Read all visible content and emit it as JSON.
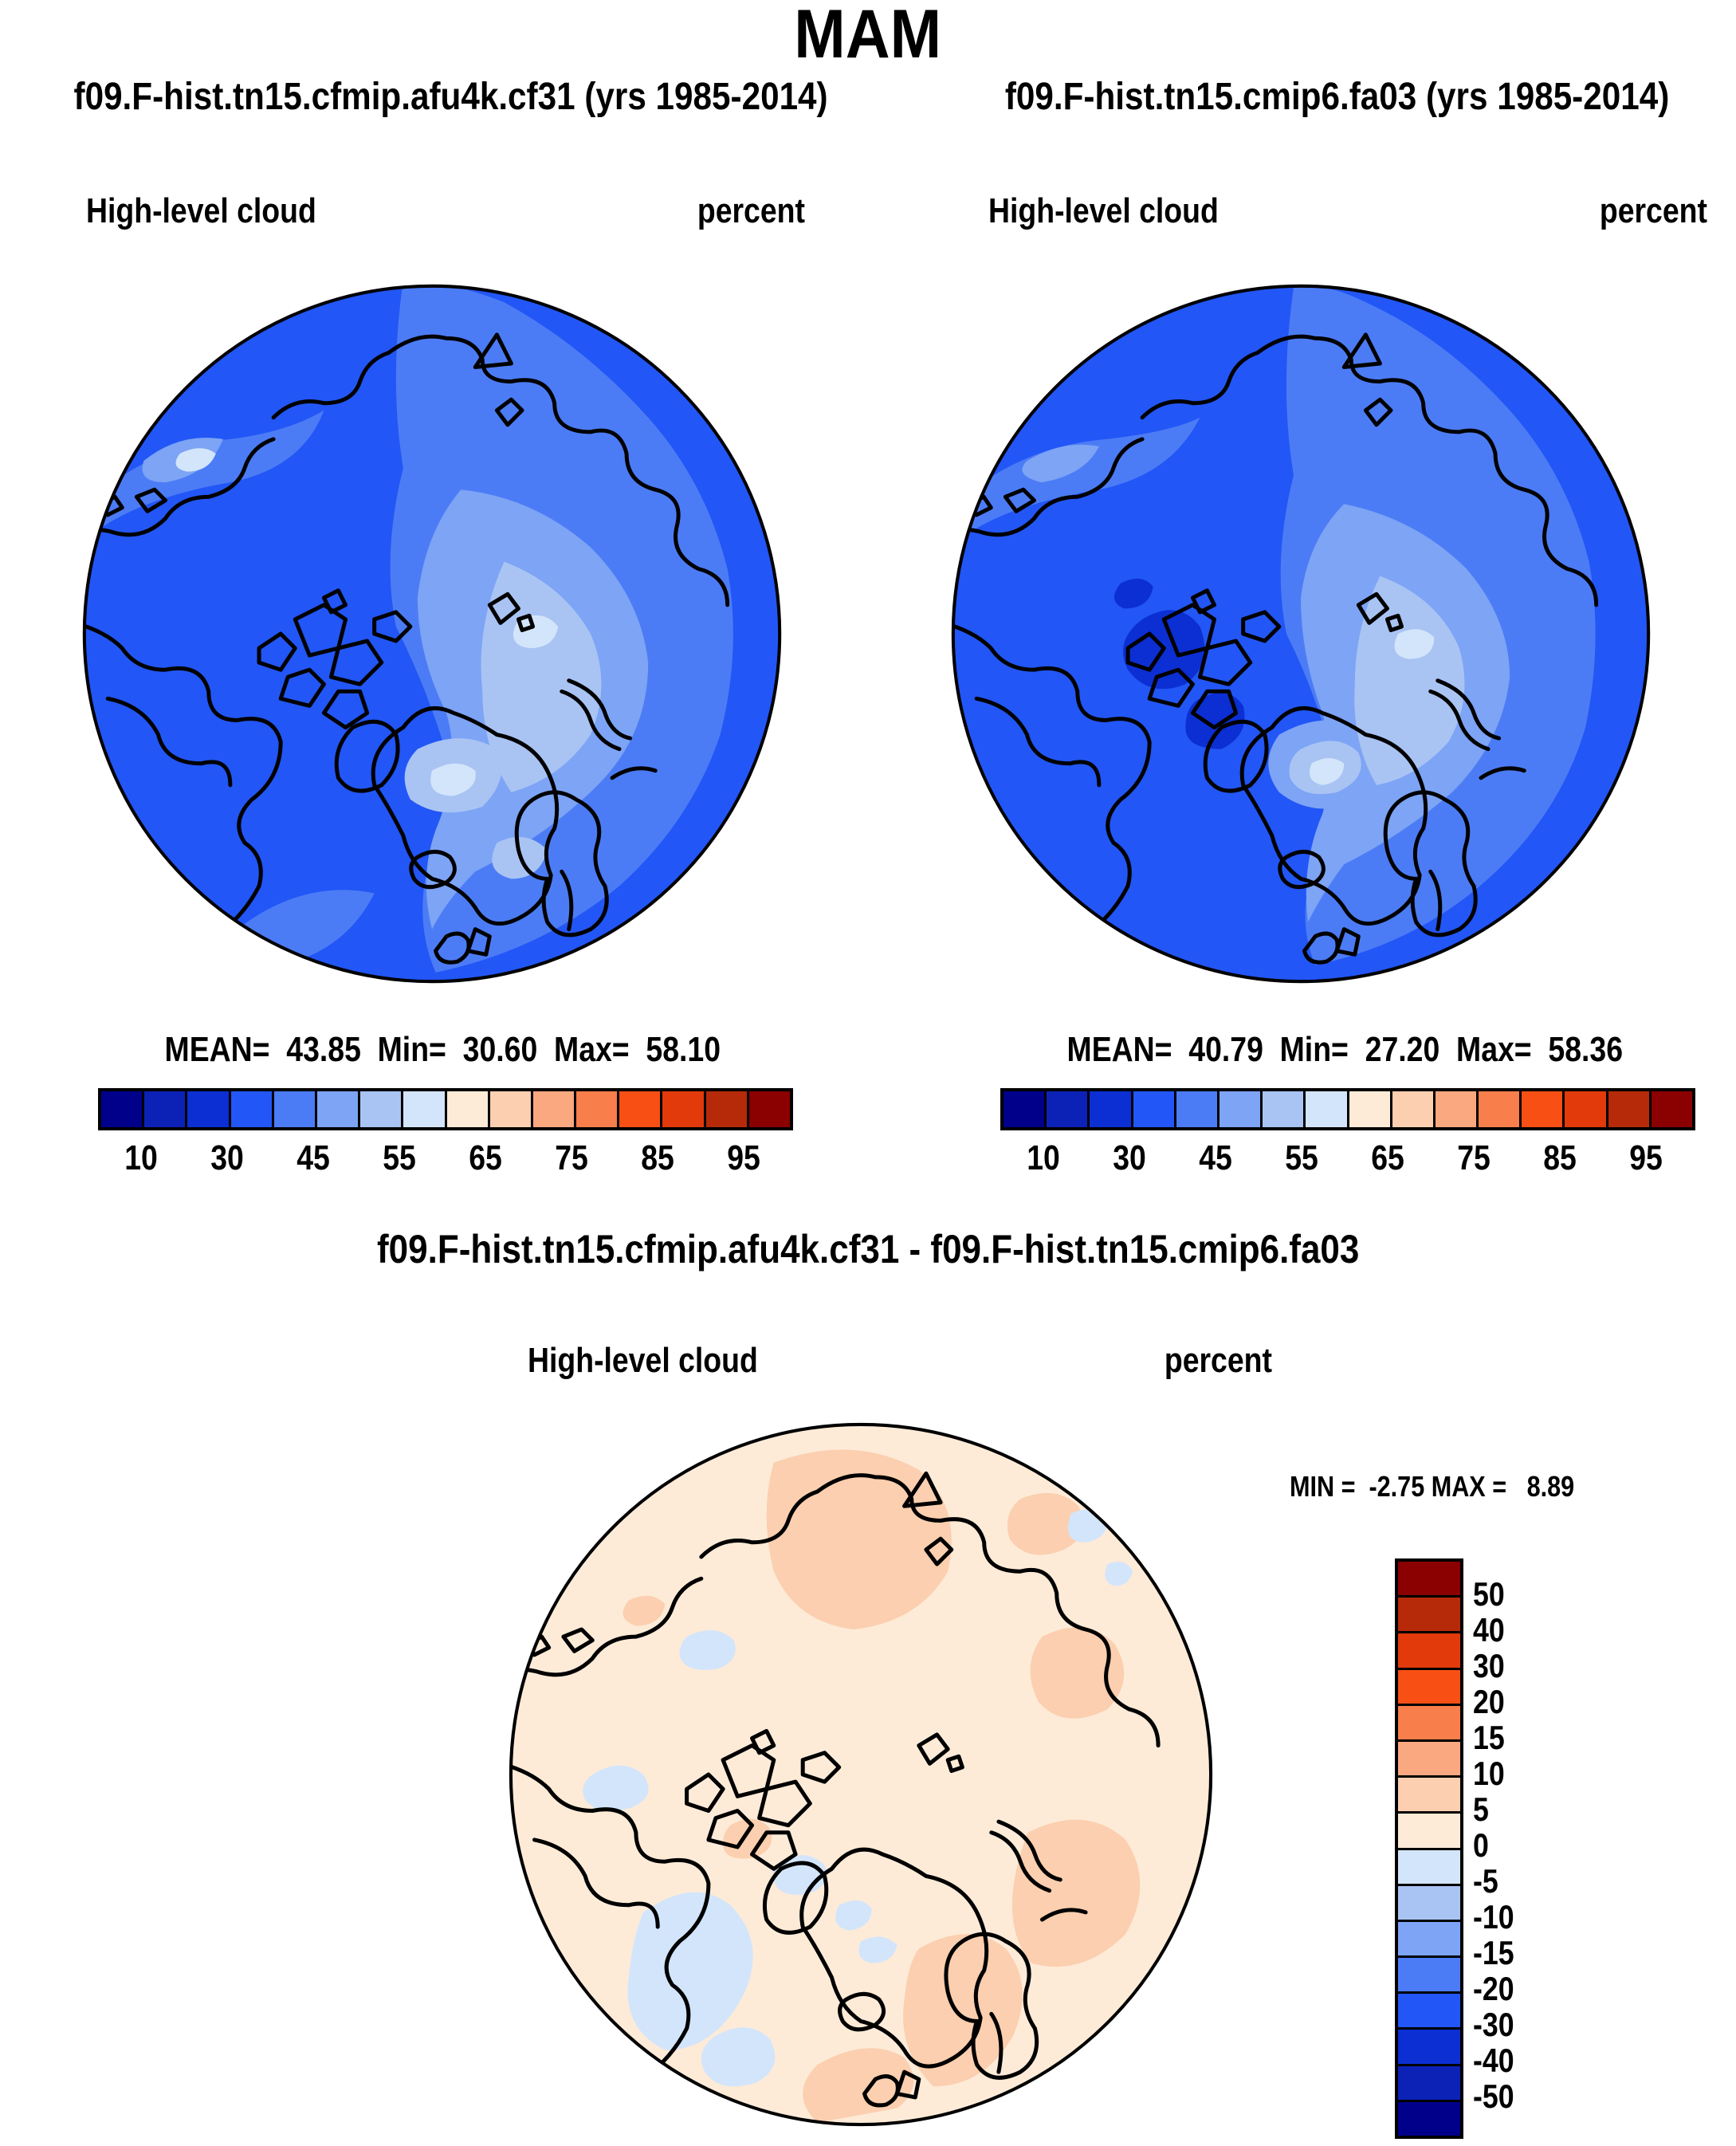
{
  "page_title": "MAM",
  "panels": [
    {
      "title": "f09.F-hist.tn15.cfmip.afu4k.cf31 (yrs 1985-2014)",
      "var_label": "High-level cloud",
      "units": "percent",
      "stats": "MEAN=  43.85  Min=  30.60  Max=  58.10"
    },
    {
      "title": "f09.F-hist.tn15.cmip6.fa03 (yrs 1985-2014)",
      "var_label": "High-level cloud",
      "units": "percent",
      "stats": "MEAN=  40.79  Min=  27.20  Max=  58.36"
    }
  ],
  "diff": {
    "title": "f09.F-hist.tn15.cfmip.afu4k.cf31 - f09.F-hist.tn15.cmip6.fa03",
    "var_label": "High-level cloud",
    "units": "percent",
    "minmax": "MIN =  -2.75 MAX =   8.89"
  },
  "chart_data": {
    "type": "heatmap",
    "subtype": "north-polar-stereographic contour maps",
    "season": "MAM",
    "variable": "High-level cloud",
    "units": "percent",
    "maps": [
      {
        "name": "f09.F-hist.tn15.cfmip.afu4k.cf31",
        "years": "1985-2014",
        "mean": 43.85,
        "min": 30.6,
        "max": 58.1
      },
      {
        "name": "f09.F-hist.tn15.cmip6.fa03",
        "years": "1985-2014",
        "mean": 40.79,
        "min": 27.2,
        "max": 58.36
      },
      {
        "name": "difference (cfmip.afu4k.cf31 - cmip6.fa03)",
        "min": -2.75,
        "max": 8.89
      }
    ],
    "colorbar_levels": [
      10,
      20,
      30,
      40,
      45,
      50,
      55,
      60,
      65,
      70,
      75,
      80,
      85,
      90,
      95
    ],
    "colorbar_tick_labels": [
      "10",
      "30",
      "45",
      "55",
      "65",
      "75",
      "85",
      "95"
    ],
    "diff_levels": [
      -50,
      -40,
      -30,
      -20,
      -15,
      -10,
      -5,
      0,
      5,
      10,
      15,
      20,
      30,
      40,
      50
    ],
    "diff_tick_labels": [
      "50",
      "40",
      "30",
      "20",
      "15",
      "10",
      "5",
      "0",
      "-5",
      "-10",
      "-15",
      "-20",
      "-30",
      "-40",
      "-50"
    ],
    "palette": [
      "#00008B",
      "#0C22B6",
      "#0B2FD3",
      "#2256F6",
      "#4C7CF5",
      "#7DA4F5",
      "#A9C4F3",
      "#D3E5FB",
      "#FDEBD8",
      "#FBCFAF",
      "#F9A880",
      "#F87E4B",
      "#F85014",
      "#E23A0B",
      "#B62A0A",
      "#8B0000"
    ],
    "legend_position": "horizontal labelbar below each map; vertical labelbar right of difference map",
    "grid": false
  }
}
